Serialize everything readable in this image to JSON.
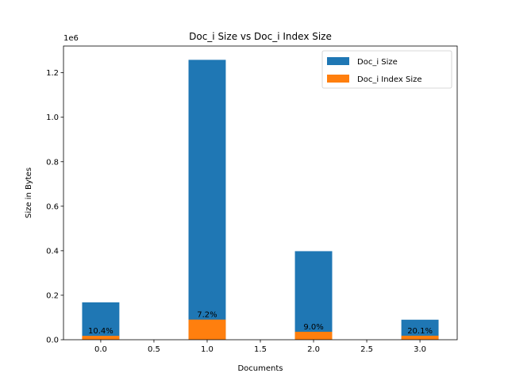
{
  "chart_data": {
    "type": "bar",
    "title": "Doc_i Size vs Doc_i Index Size",
    "xlabel": "Documents",
    "ylabel": "Size in Bytes",
    "y_offset_label": "1e6",
    "x": [
      0,
      1,
      2,
      3
    ],
    "xlim": [
      -0.35,
      3.35
    ],
    "ylim": [
      0,
      1320000
    ],
    "x_ticks": [
      0.0,
      0.5,
      1.0,
      1.5,
      2.0,
      2.5,
      3.0
    ],
    "x_tick_labels": [
      "0.0",
      "0.5",
      "1.0",
      "1.5",
      "2.0",
      "2.5",
      "3.0"
    ],
    "y_ticks": [
      0,
      200000,
      400000,
      600000,
      800000,
      1000000,
      1200000
    ],
    "y_tick_labels": [
      "0.0",
      "0.2",
      "0.4",
      "0.6",
      "0.8",
      "1.0",
      "1.2"
    ],
    "bar_width": 0.35,
    "series": [
      {
        "name": "Doc_i Size",
        "color": "#1f77b4",
        "values": [
          168000,
          1258000,
          398000,
          90000
        ]
      },
      {
        "name": "Doc_i Index Size",
        "color": "#ff7f0e",
        "values": [
          17500,
          90500,
          35800,
          18100
        ]
      }
    ],
    "annotations": [
      "10.4%",
      "7.2%",
      "9.0%",
      "20.1%"
    ],
    "legend_position": "top-right",
    "grid": false
  }
}
